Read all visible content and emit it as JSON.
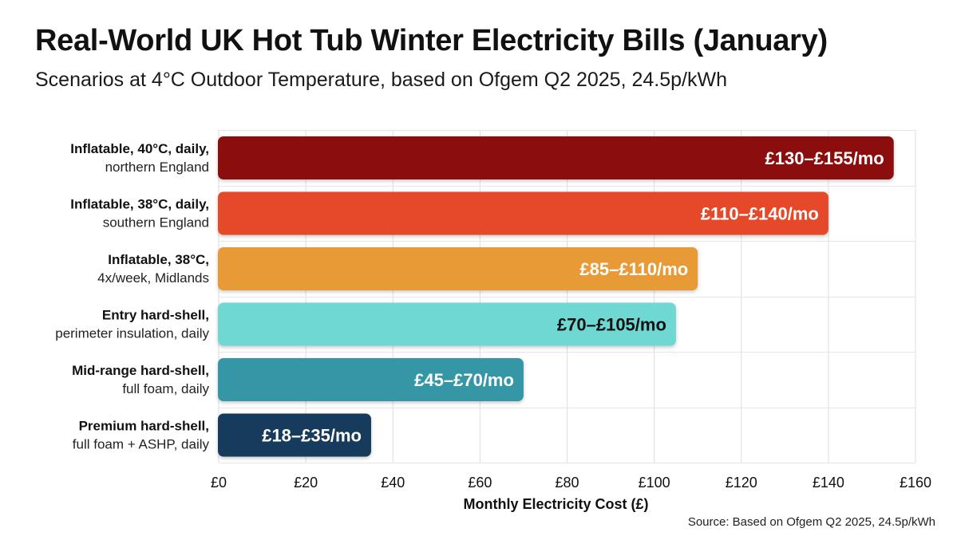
{
  "header": {
    "title": "Real-World UK Hot Tub Winter Electricity Bills (January)",
    "subtitle": "Scenarios at 4°C Outdoor Temperature, based on Ofgem Q2 2025, 24.5p/kWh"
  },
  "source_note": "Source: Based on Ofgem Q2 2025, 24.5p/kWh",
  "chart_data": {
    "type": "bar",
    "orientation": "horizontal",
    "xlabel": "Monthly Electricity Cost (£)",
    "xlim": [
      0,
      160
    ],
    "xticks": [
      0,
      20,
      40,
      60,
      80,
      100,
      120,
      140,
      160
    ],
    "xtick_labels": [
      "£0",
      "£20",
      "£40",
      "£60",
      "£80",
      "£100",
      "£120",
      "£140",
      "£160"
    ],
    "grid": true,
    "bars": [
      {
        "label_bold": "Inflatable, 40°C, daily,",
        "label_sub": "northern England",
        "low": 130,
        "high": 155,
        "value_label": "£130–£155/mo",
        "color": "#8b0a10",
        "text_color": "#ffffff"
      },
      {
        "label_bold": "Inflatable, 38°C, daily,",
        "label_sub": "southern England",
        "low": 110,
        "high": 140,
        "value_label": "£110–£140/mo",
        "color": "#e5482b",
        "text_color": "#ffffff"
      },
      {
        "label_bold": "Inflatable, 38°C,",
        "label_sub": "4x/week, Midlands",
        "low": 85,
        "high": 110,
        "value_label": "£85–£110/mo",
        "color": "#e79a35",
        "text_color": "#ffffff"
      },
      {
        "label_bold": "Entry hard-shell,",
        "label_sub": "perimeter insulation, daily",
        "low": 70,
        "high": 105,
        "value_label": "£70–£105/mo",
        "color": "#6fd8d2",
        "text_color": "#111111"
      },
      {
        "label_bold": "Mid-range hard-shell,",
        "label_sub": "full foam, daily",
        "low": 45,
        "high": 70,
        "value_label": "£45–£70/mo",
        "color": "#3597a6",
        "text_color": "#ffffff"
      },
      {
        "label_bold": "Premium hard-shell,",
        "label_sub": "full foam + ASHP, daily",
        "low": 18,
        "high": 35,
        "value_label": "£18–£35/mo",
        "color": "#163b5c",
        "text_color": "#ffffff"
      }
    ]
  }
}
